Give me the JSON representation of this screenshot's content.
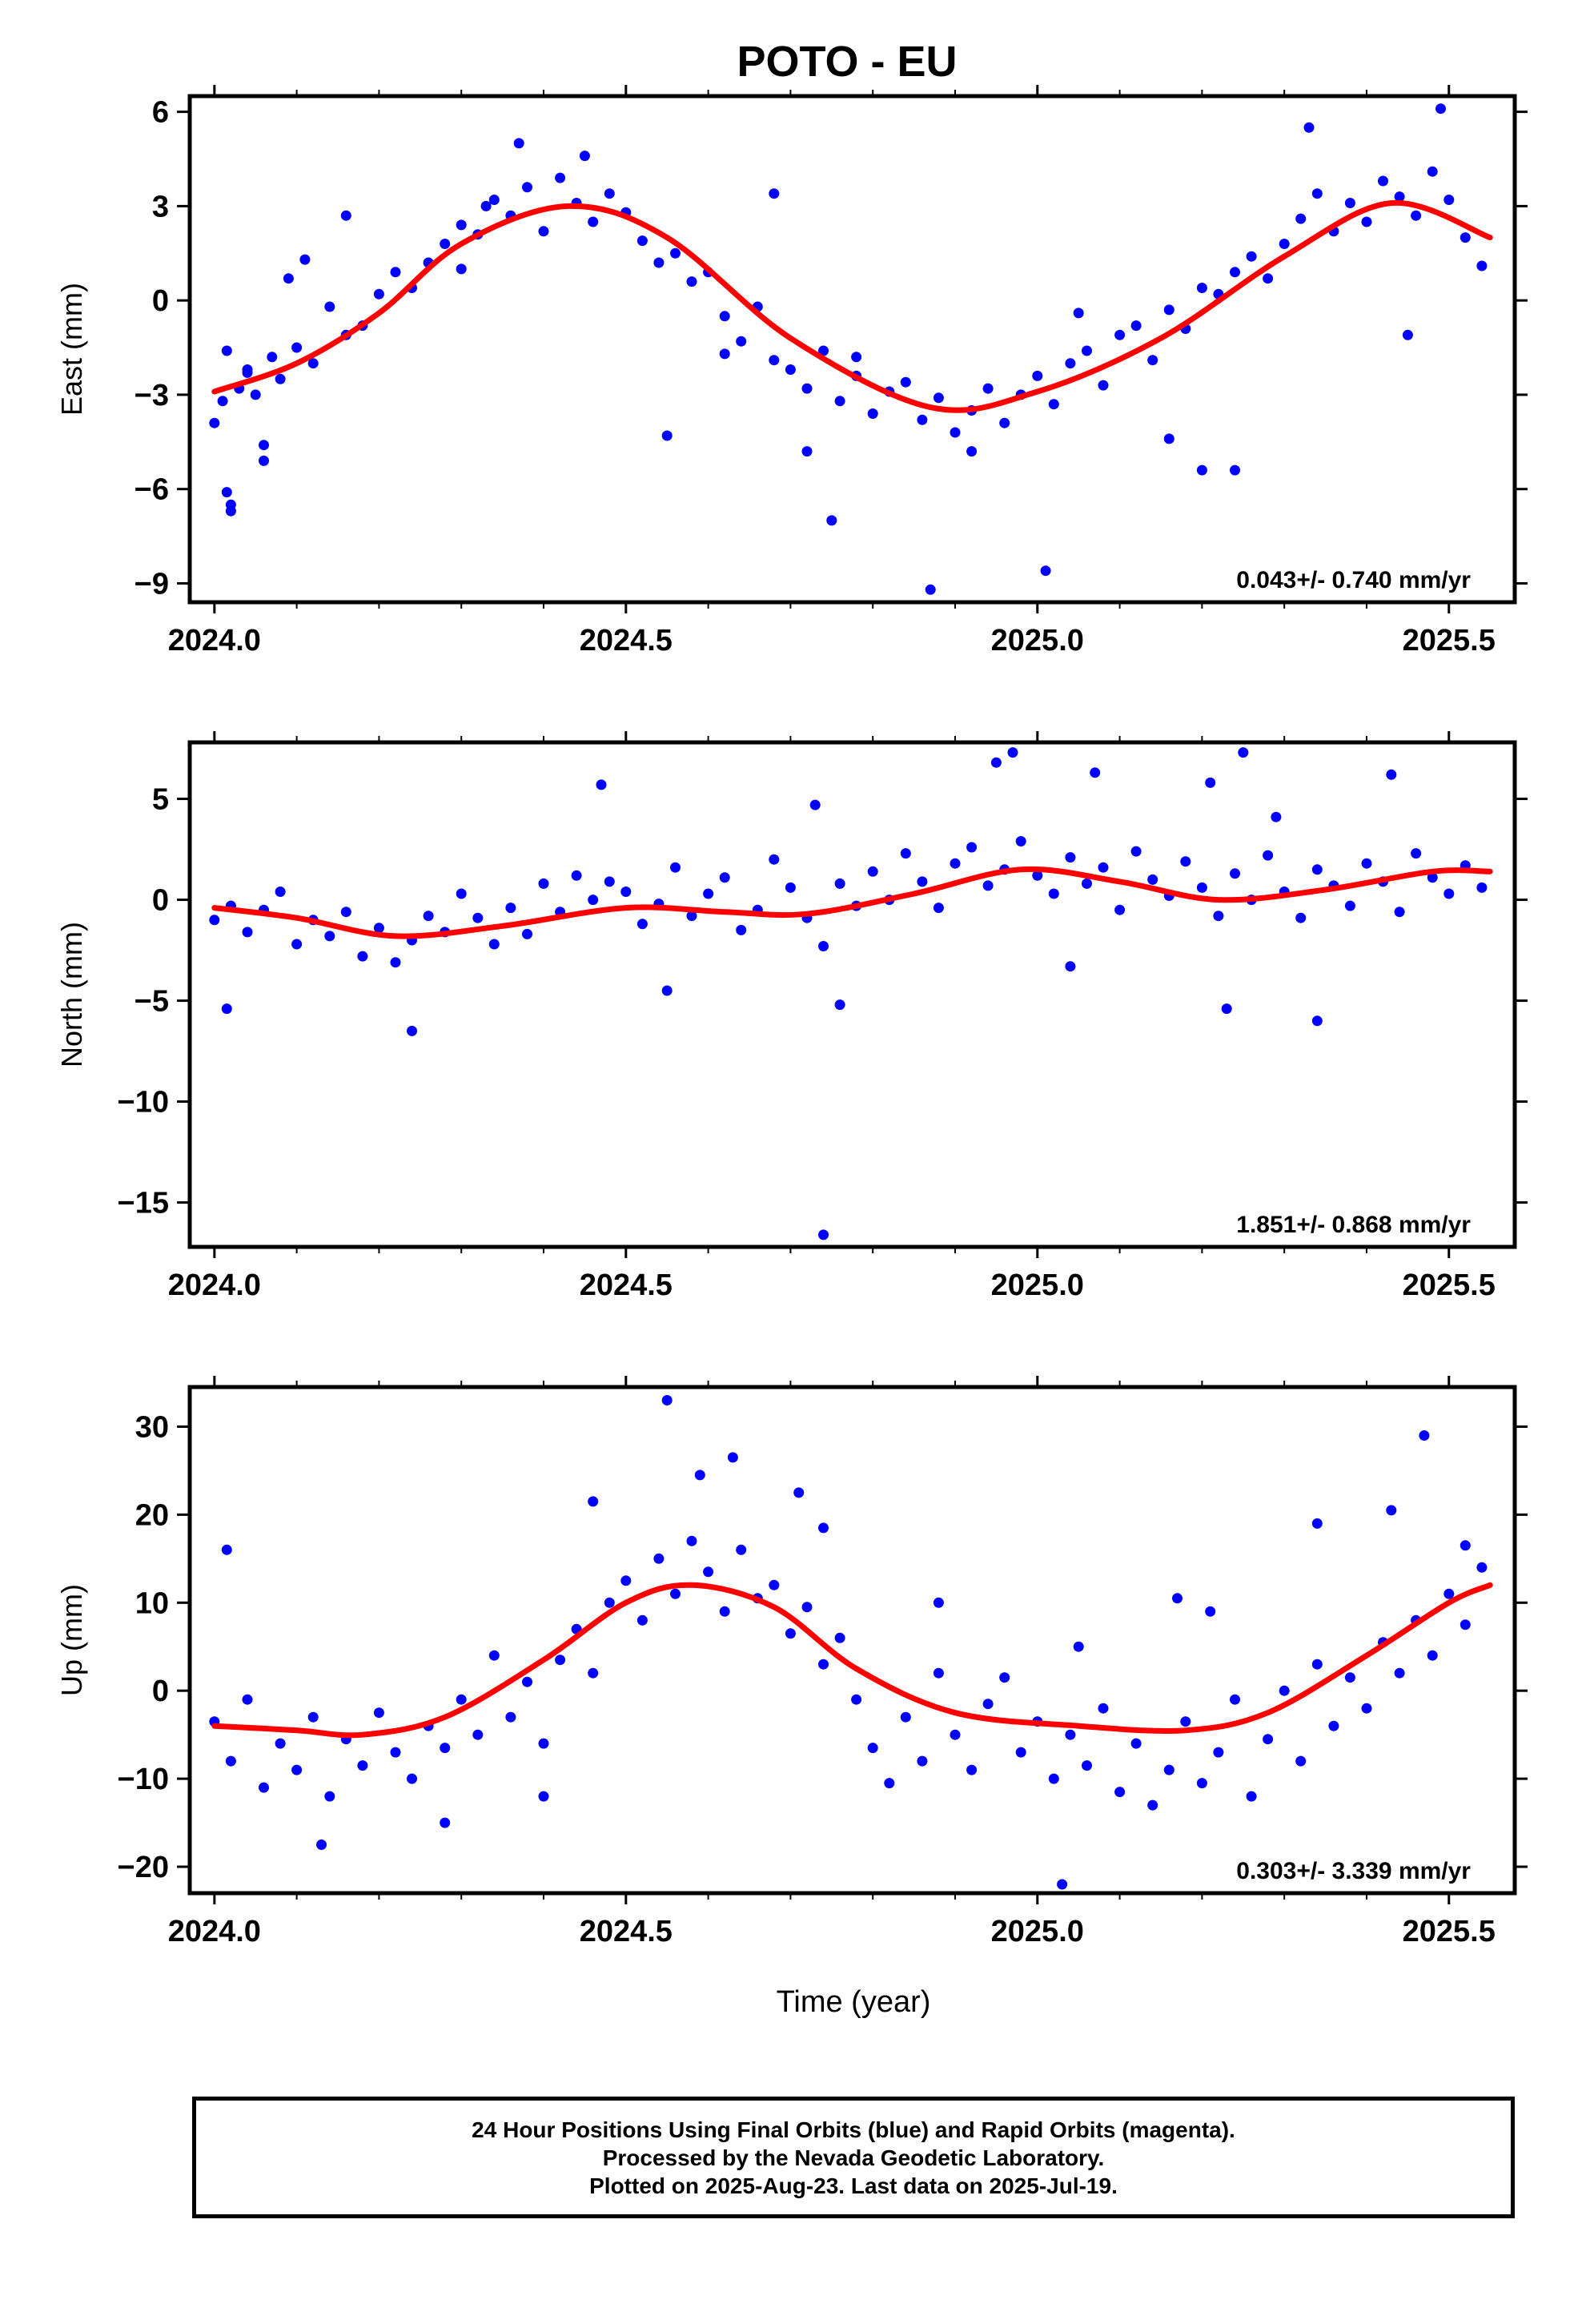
{
  "title": "POTO - EU",
  "xlabel": "Time (year)",
  "footer": {
    "line1": "24 Hour Positions Using Final Orbits (blue) and Rapid Orbits (magenta).",
    "line2": "Processed by the Nevada Geodetic Laboratory.",
    "line3": "Plotted on 2025-Aug-23. Last data on 2025-Jul-19."
  },
  "colors": {
    "points": "#0000ff",
    "fit": "#ff0000",
    "axes": "#000000"
  },
  "chart_data": [
    {
      "type": "scatter",
      "ylabel": "East (mm)",
      "rate_label": "0.043+/- 0.740 mm/yr",
      "xlim": [
        2023.97,
        2025.58
      ],
      "ylim": [
        -9.6,
        6.5
      ],
      "xticks": [
        2024.0,
        2024.5,
        2025.0,
        2025.5
      ],
      "xtick_labels": [
        "2024.0",
        "2024.5",
        "2025.0",
        "2025.5"
      ],
      "yticks": [
        -9,
        -6,
        -3,
        0,
        3,
        6
      ],
      "ytick_labels": [
        "−9",
        "−6",
        "−3",
        "0",
        "3",
        "6"
      ],
      "fit": {
        "x": [
          2024.0,
          2024.1,
          2024.2,
          2024.3,
          2024.43,
          2024.55,
          2024.7,
          2024.87,
          2025.0,
          2025.15,
          2025.3,
          2025.43,
          2025.55
        ],
        "y": [
          -2.9,
          -2.0,
          -0.4,
          1.8,
          3.0,
          2.0,
          -1.2,
          -3.4,
          -2.9,
          -1.2,
          1.4,
          3.1,
          2.0
        ]
      },
      "series": [
        {
          "kind": "points",
          "x": [
            2024.0,
            2024.01,
            2024.015,
            2024.02,
            2024.03,
            2024.04,
            2024.05,
            2024.06,
            2024.07,
            2024.08,
            2024.09,
            2024.1,
            2024.12,
            2024.14,
            2024.16,
            2024.18,
            2024.2,
            2024.22,
            2024.24,
            2024.26,
            2024.28,
            2024.3,
            2024.32,
            2024.34,
            2024.36,
            2024.38,
            2024.4,
            2024.42,
            2024.44,
            2024.46,
            2024.48,
            2024.5,
            2024.52,
            2024.54,
            2024.56,
            2024.58,
            2024.6,
            2024.62,
            2024.64,
            2024.66,
            2024.68,
            2024.7,
            2024.72,
            2024.74,
            2024.76,
            2024.78,
            2024.8,
            2024.82,
            2024.84,
            2024.86,
            2024.88,
            2024.9,
            2024.92,
            2024.94,
            2024.96,
            2024.98,
            2025.0,
            2025.02,
            2025.04,
            2025.06,
            2025.08,
            2025.1,
            2025.12,
            2025.14,
            2025.16,
            2025.18,
            2025.2,
            2025.22,
            2025.24,
            2025.26,
            2025.28,
            2025.3,
            2025.32,
            2025.34,
            2025.36,
            2025.38,
            2025.4,
            2025.42,
            2025.44,
            2025.46,
            2025.48,
            2025.5,
            2025.52,
            2025.54,
            2024.015,
            2024.02,
            2024.06,
            2024.11,
            2024.16,
            2024.33,
            2024.37,
            2024.55,
            2024.68,
            2024.72,
            2024.75,
            2024.87,
            2024.92,
            2025.01,
            2025.2,
            2025.24,
            2025.33,
            2025.45,
            2025.49,
            2024.04,
            2024.3,
            2024.45,
            2024.62,
            2024.78,
            2025.05,
            2025.16
          ],
          "y": [
            -3.9,
            -3.2,
            -1.6,
            -6.5,
            -2.8,
            -2.2,
            -3.0,
            -4.6,
            -1.8,
            -2.5,
            0.7,
            -1.5,
            -2.0,
            -0.2,
            -1.1,
            -0.8,
            0.2,
            0.9,
            0.4,
            1.2,
            1.8,
            2.4,
            2.1,
            3.2,
            2.7,
            3.6,
            2.2,
            3.9,
            3.1,
            2.5,
            3.4,
            2.8,
            1.9,
            1.2,
            1.5,
            0.6,
            0.9,
            -0.5,
            -1.3,
            -0.2,
            -1.9,
            -2.2,
            -2.8,
            -1.6,
            -3.2,
            -2.4,
            -3.6,
            -2.9,
            -2.6,
            -3.8,
            -3.1,
            -4.2,
            -3.5,
            -2.8,
            -3.9,
            -3.0,
            -2.4,
            -3.3,
            -2.0,
            -1.6,
            -2.7,
            -1.1,
            -0.8,
            -1.9,
            -0.3,
            -0.9,
            0.4,
            0.2,
            0.9,
            1.4,
            0.7,
            1.8,
            2.6,
            3.4,
            2.2,
            3.1,
            2.5,
            3.8,
            3.3,
            2.7,
            4.1,
            3.2,
            2.0,
            1.1,
            -6.1,
            -6.7,
            -5.1,
            1.3,
            2.7,
            3.0,
            5.0,
            -4.3,
            3.4,
            -4.8,
            -7.0,
            -9.2,
            -4.8,
            -8.6,
            -5.4,
            -5.4,
            5.5,
            -1.1,
            6.1,
            -2.3,
            1.0,
            4.6,
            -1.7,
            -1.8,
            -0.4,
            -4.4
          ]
        }
      ]
    },
    {
      "type": "scatter",
      "ylabel": "North (mm)",
      "rate_label": "1.851+/- 0.868 mm/yr",
      "xlim": [
        2023.97,
        2025.58
      ],
      "ylim": [
        -17.2,
        7.8
      ],
      "xticks": [
        2024.0,
        2024.5,
        2025.0,
        2025.5
      ],
      "xtick_labels": [
        "2024.0",
        "2024.5",
        "2025.0",
        "2025.5"
      ],
      "yticks": [
        -15,
        -10,
        -5,
        0,
        5
      ],
      "ytick_labels": [
        "−15",
        "−10",
        "−5",
        "0",
        "5"
      ],
      "fit": {
        "x": [
          2024.0,
          2024.1,
          2024.22,
          2024.35,
          2024.5,
          2024.62,
          2024.72,
          2024.85,
          2024.98,
          2025.1,
          2025.22,
          2025.35,
          2025.48,
          2025.55
        ],
        "y": [
          -0.4,
          -0.9,
          -1.8,
          -1.3,
          -0.4,
          -0.6,
          -0.7,
          0.3,
          1.5,
          0.9,
          0.0,
          0.5,
          1.4,
          1.4
        ]
      },
      "series": [
        {
          "kind": "points",
          "x": [
            2024.0,
            2024.02,
            2024.04,
            2024.06,
            2024.08,
            2024.1,
            2024.12,
            2024.14,
            2024.16,
            2024.18,
            2024.2,
            2024.22,
            2024.24,
            2024.26,
            2024.28,
            2024.3,
            2024.32,
            2024.34,
            2024.36,
            2024.38,
            2024.4,
            2024.42,
            2024.44,
            2024.46,
            2024.48,
            2024.5,
            2024.52,
            2024.54,
            2024.56,
            2024.58,
            2024.6,
            2024.62,
            2024.64,
            2024.66,
            2024.68,
            2024.7,
            2024.72,
            2024.74,
            2024.76,
            2024.78,
            2024.8,
            2024.82,
            2024.84,
            2024.86,
            2024.88,
            2024.9,
            2024.92,
            2024.94,
            2024.96,
            2024.98,
            2025.0,
            2025.02,
            2025.04,
            2025.06,
            2025.08,
            2025.1,
            2025.12,
            2025.14,
            2025.16,
            2025.18,
            2025.2,
            2025.22,
            2025.24,
            2025.26,
            2025.28,
            2025.3,
            2025.32,
            2025.34,
            2025.36,
            2025.38,
            2025.4,
            2025.42,
            2025.44,
            2025.46,
            2025.48,
            2025.5,
            2025.52,
            2025.54,
            2024.015,
            2024.24,
            2024.47,
            2024.55,
            2024.74,
            2024.76,
            2024.97,
            2025.04,
            2025.23,
            2025.25,
            2025.34,
            2025.43,
            2024.73,
            2024.95,
            2025.07,
            2025.29,
            2025.21
          ],
          "y": [
            -1.0,
            -0.3,
            -1.6,
            -0.5,
            0.4,
            -2.2,
            -1.0,
            -1.8,
            -0.6,
            -2.8,
            -1.4,
            -3.1,
            -2.0,
            -0.8,
            -1.6,
            0.3,
            -0.9,
            -2.2,
            -0.4,
            -1.7,
            0.8,
            -0.6,
            1.2,
            0.0,
            0.9,
            0.4,
            -1.2,
            -0.2,
            1.6,
            -0.8,
            0.3,
            1.1,
            -1.5,
            -0.5,
            2.0,
            0.6,
            -0.9,
            -2.3,
            0.8,
            -0.3,
            1.4,
            0.0,
            2.3,
            0.9,
            -0.4,
            1.8,
            2.6,
            0.7,
            1.5,
            2.9,
            1.2,
            0.3,
            2.1,
            0.8,
            1.6,
            -0.5,
            2.4,
            1.0,
            0.2,
            1.9,
            0.6,
            -0.8,
            1.3,
            0.0,
            2.2,
            0.4,
            -0.9,
            1.5,
            0.7,
            -0.3,
            1.8,
            0.9,
            -0.6,
            2.3,
            1.1,
            0.3,
            1.7,
            0.6,
            -5.4,
            -6.5,
            5.7,
            -4.5,
            -16.6,
            -5.2,
            7.3,
            -3.3,
            -5.4,
            7.3,
            -6.0,
            6.2,
            4.7,
            6.8,
            6.3,
            4.1,
            5.8
          ]
        }
      ]
    },
    {
      "type": "scatter",
      "ylabel": "Up (mm)",
      "rate_label": "0.303+/- 3.339 mm/yr",
      "xlim": [
        2023.97,
        2025.58
      ],
      "ylim": [
        -23.0,
        34.5
      ],
      "xticks": [
        2024.0,
        2024.5,
        2025.0,
        2025.5
      ],
      "xtick_labels": [
        "2024.0",
        "2024.5",
        "2025.0",
        "2025.5"
      ],
      "yticks": [
        -20,
        -10,
        0,
        10,
        20,
        30
      ],
      "ytick_labels": [
        "−20",
        "−10",
        "0",
        "10",
        "20",
        "30"
      ],
      "fit": {
        "x": [
          2024.0,
          2024.1,
          2024.18,
          2024.28,
          2024.4,
          2024.5,
          2024.58,
          2024.68,
          2024.78,
          2024.9,
          2025.05,
          2025.18,
          2025.28,
          2025.4,
          2025.5,
          2025.55
        ],
        "y": [
          -4.0,
          -4.5,
          -5.0,
          -3.0,
          3.5,
          10.0,
          12.0,
          9.5,
          2.5,
          -2.5,
          -4.0,
          -4.5,
          -2.5,
          4.0,
          10.0,
          12.0
        ]
      },
      "series": [
        {
          "kind": "points",
          "x": [
            2024.0,
            2024.02,
            2024.04,
            2024.06,
            2024.08,
            2024.1,
            2024.12,
            2024.14,
            2024.16,
            2024.18,
            2024.2,
            2024.22,
            2024.24,
            2024.26,
            2024.28,
            2024.3,
            2024.32,
            2024.34,
            2024.36,
            2024.38,
            2024.4,
            2024.42,
            2024.44,
            2024.46,
            2024.48,
            2024.5,
            2024.52,
            2024.54,
            2024.56,
            2024.58,
            2024.6,
            2024.62,
            2024.64,
            2024.66,
            2024.68,
            2024.7,
            2024.72,
            2024.74,
            2024.76,
            2024.78,
            2024.8,
            2024.82,
            2024.84,
            2024.86,
            2024.88,
            2024.9,
            2024.92,
            2024.94,
            2024.96,
            2024.98,
            2025.0,
            2025.02,
            2025.04,
            2025.06,
            2025.08,
            2025.1,
            2025.12,
            2025.14,
            2025.16,
            2025.18,
            2025.2,
            2025.22,
            2025.24,
            2025.26,
            2025.28,
            2025.3,
            2025.32,
            2025.34,
            2025.36,
            2025.38,
            2025.4,
            2025.42,
            2025.44,
            2025.46,
            2025.48,
            2025.5,
            2025.52,
            2025.54,
            2024.015,
            2024.13,
            2024.55,
            2024.63,
            2024.46,
            2025.03,
            2025.34,
            2025.47,
            2024.4,
            2024.28,
            2025.43,
            2024.74,
            2024.88,
            2025.05,
            2025.17,
            2025.21,
            2025.52,
            2024.59,
            2024.71
          ],
          "y": [
            -3.5,
            -8.0,
            -1.0,
            -11.0,
            -6.0,
            -9.0,
            -3.0,
            -12.0,
            -5.5,
            -8.5,
            -2.5,
            -7.0,
            -10.0,
            -4.0,
            -6.5,
            -1.0,
            -5.0,
            4.0,
            -3.0,
            1.0,
            -6.0,
            3.5,
            7.0,
            2.0,
            10.0,
            12.5,
            8.0,
            15.0,
            11.0,
            17.0,
            13.5,
            9.0,
            16.0,
            10.5,
            12.0,
            6.5,
            9.5,
            3.0,
            6.0,
            -1.0,
            -6.5,
            -10.5,
            -3.0,
            -8.0,
            2.0,
            -5.0,
            -9.0,
            -1.5,
            1.5,
            -7.0,
            -3.5,
            -10.0,
            -5.0,
            -8.5,
            -2.0,
            -11.5,
            -6.0,
            -13.0,
            -9.0,
            -3.5,
            -10.5,
            -7.0,
            -1.0,
            -12.0,
            -5.5,
            0.0,
            -8.0,
            3.0,
            -4.0,
            1.5,
            -2.0,
            5.5,
            2.0,
            8.0,
            4.0,
            11.0,
            7.5,
            14.0,
            16.0,
            -17.5,
            33.0,
            26.5,
            21.5,
            -22.0,
            19.0,
            29.0,
            -12.0,
            -15.0,
            20.5,
            18.5,
            10.0,
            5.0,
            10.5,
            9.0,
            16.5,
            24.5,
            22.5
          ]
        }
      ]
    }
  ]
}
